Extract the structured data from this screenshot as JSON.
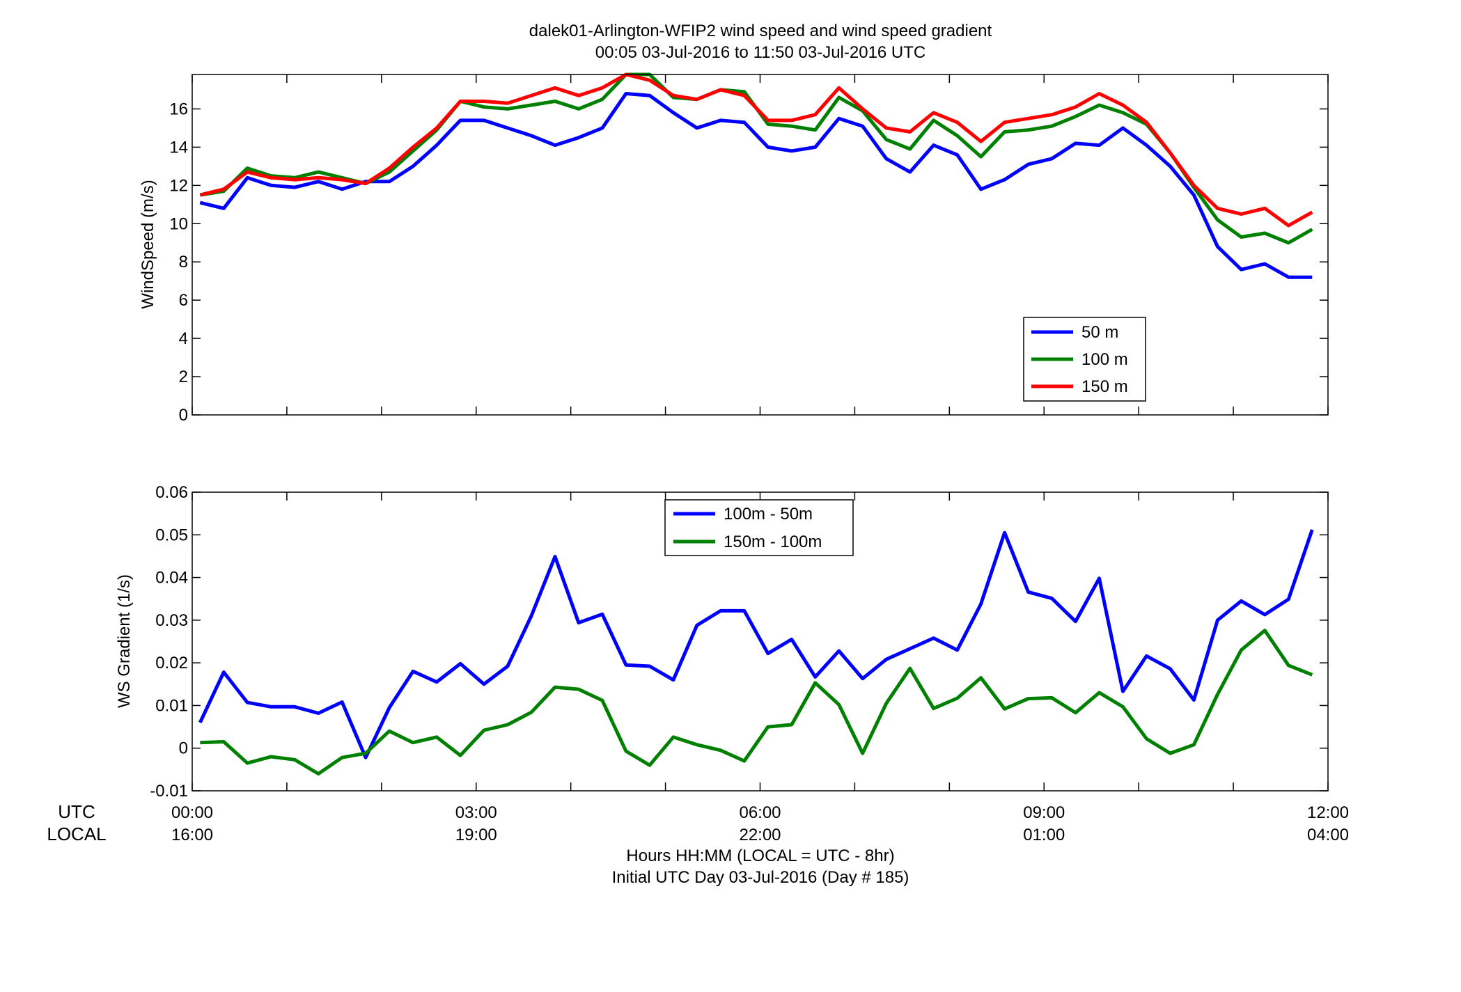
{
  "figure": {
    "title_line1": "dalek01-Arlington-WFIP2  wind speed and wind speed gradient",
    "title_line2": "00:05 03-Jul-2016 to 11:50 03-Jul-2016  UTC",
    "utc_label": "UTC",
    "local_label": "LOCAL",
    "xlabel_line1": "Hours HH:MM  (LOCAL = UTC - 8hr)",
    "xlabel_line2": "Initial UTC Day 03-Jul-2016 (Day # 185)",
    "utc_ticks": [
      "00:00",
      "03:00",
      "06:00",
      "09:00",
      "12:00"
    ],
    "local_ticks": [
      "16:00",
      "19:00",
      "22:00",
      "01:00",
      "04:00"
    ]
  },
  "chart_data": [
    {
      "type": "line",
      "ylabel": "WindSpeed (m/s)",
      "xlim": [
        0,
        12
      ],
      "ylim": [
        0,
        17.8
      ],
      "yticks": [
        0,
        2,
        4,
        6,
        8,
        10,
        12,
        14,
        16
      ],
      "ytick_labels": [
        "0",
        "2",
        "4",
        "6",
        "8",
        "10",
        "12",
        "14",
        "16"
      ],
      "legend_position": "lower-right",
      "x_hours": [
        0.083,
        0.333,
        0.583,
        0.833,
        1.083,
        1.333,
        1.583,
        1.833,
        2.083,
        2.333,
        2.583,
        2.833,
        3.083,
        3.333,
        3.583,
        3.833,
        4.083,
        4.333,
        4.583,
        4.833,
        5.083,
        5.333,
        5.583,
        5.833,
        6.083,
        6.333,
        6.583,
        6.833,
        7.083,
        7.333,
        7.583,
        7.833,
        8.083,
        8.333,
        8.583,
        8.833,
        9.083,
        9.333,
        9.583,
        9.833,
        10.083,
        10.333,
        10.583,
        10.833,
        11.083,
        11.333,
        11.583,
        11.833
      ],
      "series": [
        {
          "name": "50 m",
          "color": "#0000ff",
          "values": [
            11.1,
            10.8,
            12.4,
            12.0,
            11.9,
            12.2,
            11.8,
            12.2,
            12.2,
            13.0,
            14.1,
            15.4,
            15.4,
            15.0,
            14.6,
            14.1,
            14.5,
            15.0,
            16.8,
            16.7,
            15.8,
            15.0,
            15.4,
            15.3,
            14.0,
            13.8,
            14.0,
            15.5,
            15.1,
            13.4,
            12.7,
            14.1,
            13.6,
            11.8,
            12.3,
            13.1,
            13.4,
            14.2,
            14.1,
            15.0,
            14.1,
            13.0,
            11.5,
            8.8,
            7.6,
            7.9,
            7.2,
            7.2
          ]
        },
        {
          "name": "100 m",
          "color": "#008000",
          "values": [
            11.5,
            11.7,
            12.9,
            12.5,
            12.4,
            12.7,
            12.4,
            12.1,
            12.7,
            13.8,
            14.9,
            16.4,
            16.1,
            16.0,
            16.2,
            16.4,
            16.0,
            16.5,
            17.9,
            17.9,
            16.6,
            16.5,
            17.0,
            16.9,
            15.2,
            15.1,
            14.9,
            16.6,
            15.9,
            14.4,
            13.9,
            15.4,
            14.6,
            13.5,
            14.8,
            14.9,
            15.1,
            15.6,
            16.2,
            15.8,
            15.2,
            13.7,
            11.9,
            10.2,
            9.3,
            9.5,
            9.0,
            9.7
          ]
        },
        {
          "name": "150 m",
          "color": "#ff0000",
          "values": [
            11.5,
            11.8,
            12.7,
            12.4,
            12.3,
            12.4,
            12.3,
            12.1,
            12.9,
            14.0,
            15.0,
            16.4,
            16.4,
            16.3,
            16.7,
            17.1,
            16.7,
            17.1,
            17.8,
            17.5,
            16.7,
            16.5,
            17.0,
            16.7,
            15.4,
            15.4,
            15.7,
            17.1,
            16.0,
            15.0,
            14.8,
            15.8,
            15.3,
            14.3,
            15.3,
            15.5,
            15.7,
            16.1,
            16.8,
            16.2,
            15.3,
            13.7,
            12.0,
            10.8,
            10.5,
            10.8,
            9.9,
            10.6
          ]
        }
      ]
    },
    {
      "type": "line",
      "ylabel": "WS Gradient (1/s)",
      "xlim": [
        0,
        12
      ],
      "ylim": [
        -0.01,
        0.06
      ],
      "yticks": [
        -0.01,
        0,
        0.01,
        0.02,
        0.03,
        0.04,
        0.05,
        0.06
      ],
      "ytick_labels": [
        "-0.01",
        "0",
        "0.01",
        "0.02",
        "0.03",
        "0.04",
        "0.05",
        "0.06"
      ],
      "legend_position": "top-center",
      "x_hours": [
        0.083,
        0.333,
        0.583,
        0.833,
        1.083,
        1.333,
        1.583,
        1.833,
        2.083,
        2.333,
        2.583,
        2.833,
        3.083,
        3.333,
        3.583,
        3.833,
        4.083,
        4.333,
        4.583,
        4.833,
        5.083,
        5.333,
        5.583,
        5.833,
        6.083,
        6.333,
        6.583,
        6.833,
        7.083,
        7.333,
        7.583,
        7.833,
        8.083,
        8.333,
        8.583,
        8.833,
        9.083,
        9.333,
        9.583,
        9.833,
        10.083,
        10.333,
        10.583,
        10.833,
        11.083,
        11.333,
        11.583,
        11.833
      ],
      "series": [
        {
          "name": "100m - 50m",
          "color": "#0000ff",
          "values": [
            0.006,
            0.0178,
            0.0107,
            0.0097,
            0.0097,
            0.0082,
            0.0108,
            -0.0022,
            0.0095,
            0.018,
            0.0155,
            0.0198,
            0.015,
            0.0192,
            0.031,
            0.0449,
            0.0294,
            0.0314,
            0.0195,
            0.0192,
            0.016,
            0.0288,
            0.0322,
            0.0322,
            0.0222,
            0.0255,
            0.0167,
            0.0228,
            0.0163,
            0.0208,
            0.0233,
            0.0258,
            0.023,
            0.0338,
            0.0505,
            0.0366,
            0.0351,
            0.0297,
            0.0398,
            0.0133,
            0.0216,
            0.0186,
            0.0113,
            0.03,
            0.0345,
            0.0313,
            0.0349,
            0.0512
          ]
        },
        {
          "name": "150m - 100m",
          "color": "#008000",
          "values": [
            0.0013,
            0.0015,
            -0.0035,
            -0.002,
            -0.0027,
            -0.006,
            -0.0022,
            -0.0012,
            0.004,
            0.0013,
            0.0026,
            -0.0017,
            0.0042,
            0.0055,
            0.0084,
            0.0143,
            0.0138,
            0.0112,
            -0.0007,
            -0.004,
            0.0026,
            0.0008,
            -0.0005,
            -0.003,
            0.005,
            0.0055,
            0.0153,
            0.0102,
            -0.0012,
            0.0105,
            0.0187,
            0.0093,
            0.0117,
            0.0165,
            0.0092,
            0.0116,
            0.0118,
            0.0083,
            0.013,
            0.0097,
            0.0022,
            -0.0012,
            0.0008,
            0.0126,
            0.023,
            0.0276,
            0.0194,
            0.0172
          ]
        }
      ]
    }
  ]
}
